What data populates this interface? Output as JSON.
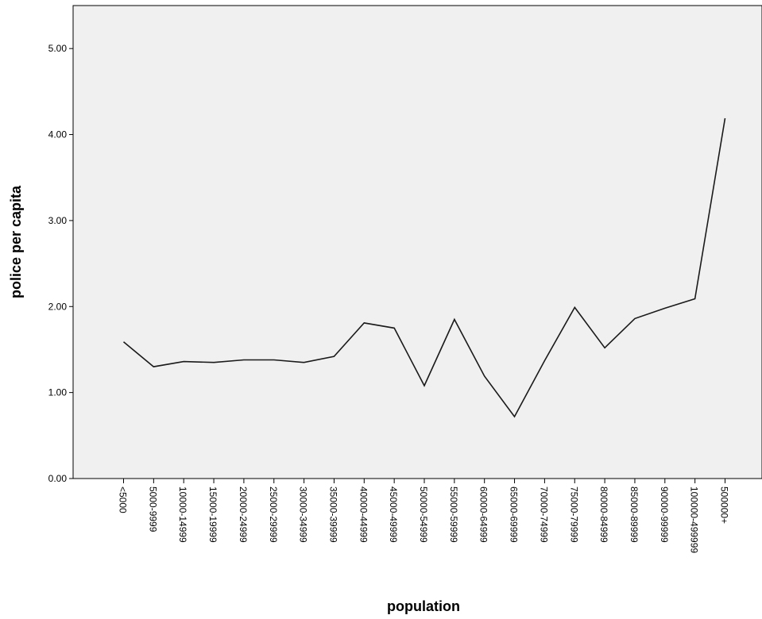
{
  "chart_data": {
    "type": "line",
    "title": "",
    "xlabel": "population",
    "ylabel": "police per capita",
    "ylim": [
      0,
      5.5
    ],
    "yticks": [
      "0.00",
      "1.00",
      "2.00",
      "3.00",
      "4.00",
      "5.00"
    ],
    "grid": false,
    "categories": [
      "<5000",
      "5000-9999",
      "10000-14999",
      "15000-19999",
      "20000-24999",
      "25000-29999",
      "30000-34999",
      "35000-39999",
      "40000-44999",
      "45000-49999",
      "50000-54999",
      "55000-59999",
      "60000-64999",
      "65000-69999",
      "70000-74999",
      "75000-79999",
      "80000-84999",
      "85000-89999",
      "90000-99999",
      "100000-499999",
      "500000+"
    ],
    "values": [
      1.59,
      1.3,
      1.36,
      1.35,
      1.38,
      1.38,
      1.35,
      1.42,
      1.81,
      1.75,
      1.08,
      1.85,
      1.19,
      0.72,
      1.37,
      1.99,
      1.52,
      1.86,
      1.98,
      2.09,
      4.19
    ]
  },
  "colors": {
    "plot_background": "#f0f0f0",
    "line": "#1a1a1a",
    "axis": "#000000"
  }
}
